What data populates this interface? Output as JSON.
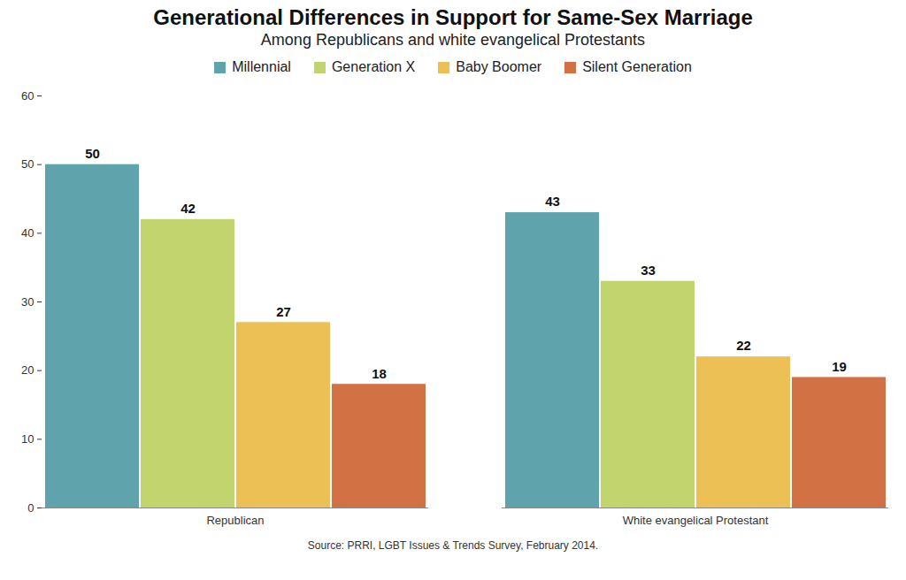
{
  "chart_data": {
    "type": "bar",
    "title": "Generational Differences in Support for Same-Sex Marriage",
    "subtitle": "Among Republicans and white evangelical Protestants",
    "caption": "Source: PRRI, LGBT Issues & Trends Survey, February 2014.",
    "categories": [
      "Republican",
      "White evangelical Protestant"
    ],
    "series": [
      {
        "name": "Millennial",
        "color": "#5fa3ad",
        "values": [
          50,
          43
        ]
      },
      {
        "name": "Generation X",
        "color": "#c2d46e",
        "values": [
          42,
          33
        ]
      },
      {
        "name": "Baby Boomer",
        "color": "#ecc055",
        "values": [
          27,
          22
        ]
      },
      {
        "name": "Silent Generation",
        "color": "#d27144",
        "values": [
          18,
          19
        ]
      }
    ],
    "ylim": [
      0,
      60
    ],
    "yticks": [
      0,
      10,
      20,
      30,
      40,
      50,
      60
    ],
    "grid": false,
    "legend": "top",
    "data_labels": true
  }
}
